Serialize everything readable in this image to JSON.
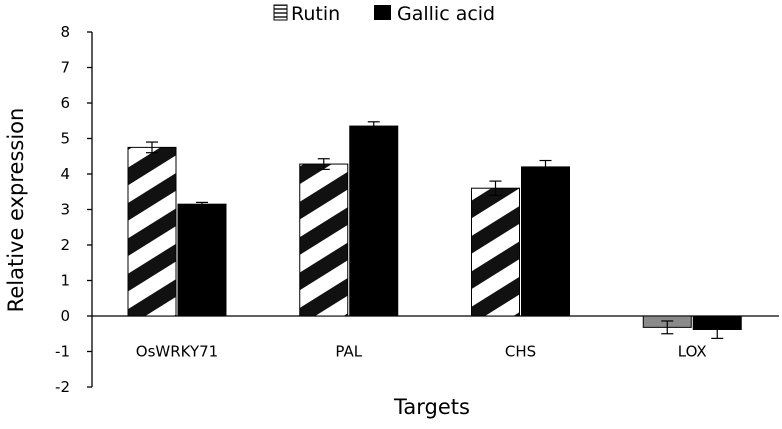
{
  "chart_data": {
    "type": "bar",
    "xlabel": "Targets",
    "ylabel": "Relative expression",
    "ylim": [
      -2,
      8
    ],
    "yticks": [
      -2,
      -1,
      0,
      1,
      2,
      3,
      4,
      5,
      6,
      7,
      8
    ],
    "categories": [
      "OsWRKY71",
      "PAL",
      "CHS",
      "LOX"
    ],
    "series": [
      {
        "name": "Rutin",
        "values": [
          4.75,
          4.28,
          3.6,
          -0.32
        ],
        "errors": [
          0.15,
          0.15,
          0.2,
          0.18
        ],
        "fill": "hatched-diagonal-black-white",
        "negative_color": "#8a8a8a"
      },
      {
        "name": "Gallic acid",
        "values": [
          3.15,
          5.35,
          4.2,
          -0.38
        ],
        "errors": [
          0.05,
          0.12,
          0.18,
          0.25
        ],
        "color": "#000000"
      }
    ],
    "legend": "top-center",
    "grid": false
  }
}
